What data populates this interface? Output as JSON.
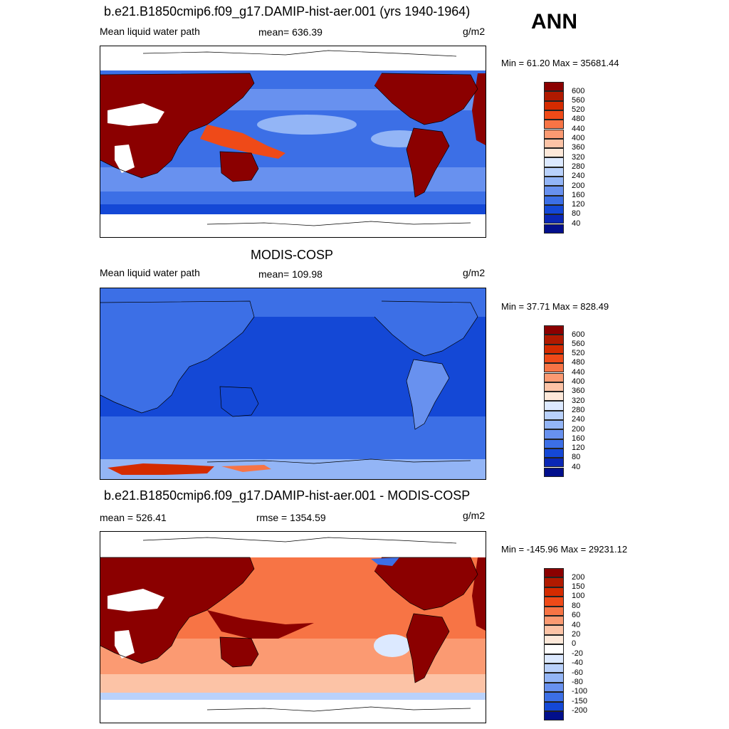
{
  "season": "ANN",
  "panels": [
    {
      "title": "b.e21.B1850cmip6.f09_g17.DAMIP-hist-aer.001 (yrs 1940-1964)",
      "left_label": "Mean liquid water path",
      "center_label": "mean= 636.39",
      "units": "g/m2",
      "minmax": "Min =  61.20 Max = 35681.44",
      "colorbar_ticks": [
        "600",
        "560",
        "520",
        "480",
        "440",
        "400",
        "360",
        "320",
        "280",
        "240",
        "200",
        "160",
        "120",
        "80",
        "40"
      ],
      "colors": [
        "#8b0000",
        "#b01a00",
        "#d42b00",
        "#ef4a18",
        "#f77445",
        "#fb9a72",
        "#fcc3a6",
        "#fde8d9",
        "#dce9ff",
        "#b9d1fb",
        "#93b5f6",
        "#6891ef",
        "#3c6fe6",
        "#1448d6",
        "#0a27b5",
        "#020f8c"
      ]
    },
    {
      "title": "MODIS-COSP",
      "left_label": "Mean liquid water path",
      "center_label": "mean= 109.98",
      "units": "g/m2",
      "minmax": "Min =  37.71 Max = 828.49",
      "colorbar_ticks": [
        "600",
        "560",
        "520",
        "480",
        "440",
        "400",
        "360",
        "320",
        "280",
        "240",
        "200",
        "160",
        "120",
        "80",
        "40"
      ],
      "colors": [
        "#8b0000",
        "#b01a00",
        "#d42b00",
        "#ef4a18",
        "#f77445",
        "#fb9a72",
        "#fcc3a6",
        "#fde8d9",
        "#dce9ff",
        "#b9d1fb",
        "#93b5f6",
        "#6891ef",
        "#3c6fe6",
        "#1448d6",
        "#0a27b5",
        "#020f8c"
      ]
    },
    {
      "title": "b.e21.B1850cmip6.f09_g17.DAMIP-hist-aer.001 - MODIS-COSP",
      "left_label": "mean = 526.41",
      "center_label": "rmse = 1354.59",
      "units": "g/m2",
      "minmax": "Min = -145.96 Max = 29231.12",
      "colorbar_ticks": [
        "200",
        "150",
        "100",
        "80",
        "60",
        "40",
        "20",
        "0",
        "-20",
        "-40",
        "-60",
        "-80",
        "-100",
        "-150",
        "-200"
      ],
      "colors": [
        "#8b0000",
        "#b01a00",
        "#d42b00",
        "#ef4a18",
        "#f77445",
        "#fb9a72",
        "#fcc3a6",
        "#fde8d9",
        "#ffffff",
        "#dce9ff",
        "#b9d1fb",
        "#93b5f6",
        "#6891ef",
        "#3c6fe6",
        "#1448d6",
        "#020f8c"
      ]
    }
  ]
}
